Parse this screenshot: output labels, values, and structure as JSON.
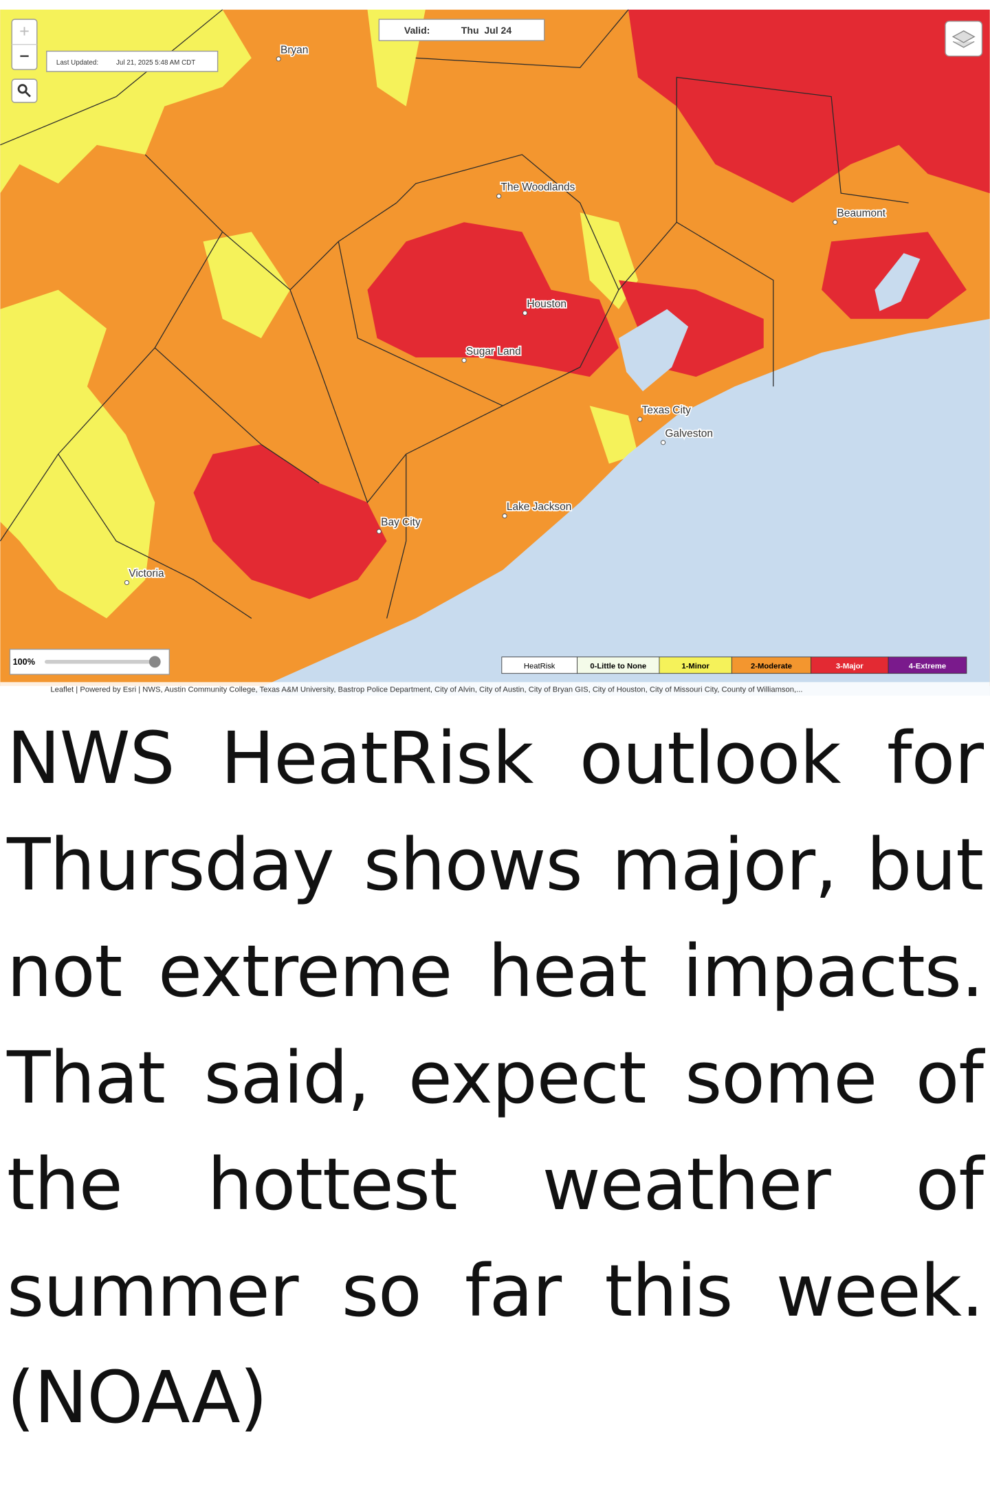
{
  "map": {
    "zoom_in": "+",
    "zoom_out": "−",
    "last_updated_label": "Last Updated:",
    "last_updated": "Jul 21, 2025 5:48 AM CDT",
    "valid_label": "Valid:",
    "valid": "Thu  Jul 24",
    "opacity": "100%",
    "cities": [
      "Bryan",
      "The Woodlands",
      "Houston",
      "Sugar Land",
      "Beaumont",
      "Texas City",
      "Galveston",
      "Lake Jackson",
      "Bay City",
      "Victoria"
    ],
    "legend": {
      "title": "HeatRisk",
      "items": [
        {
          "label": "0-Little to None",
          "color": "#f4fbe9"
        },
        {
          "label": "1-Minor",
          "color": "#f5f25a"
        },
        {
          "label": "2-Moderate",
          "color": "#f3962f"
        },
        {
          "label": "3-Major",
          "color": "#e32a33"
        },
        {
          "label": "4-Extreme",
          "color": "#7a1a8c"
        }
      ]
    },
    "attribution": "Leaflet | Powered by Esri | NWS, Austin Community College, Texas A&M University, Bastrop Police Department, City of Alvin, City of Austin, City of Bryan GIS, City of Houston, City of Missouri City, County of Williamson,..."
  },
  "caption": "NWS HeatRisk outlook for Thursday shows major, but not extreme heat impacts. That said, expect some of the hottest weather of summer so far this week. (NOAA)"
}
